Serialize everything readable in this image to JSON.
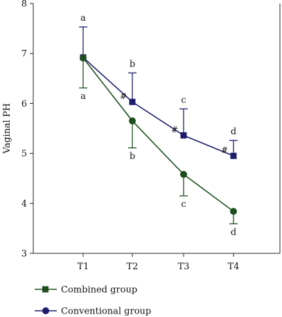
{
  "chart_data": {
    "type": "line",
    "title": "",
    "xlabel": "",
    "ylabel": "Vaginal PH",
    "categories": [
      "T1",
      "T2",
      "T3",
      "T4"
    ],
    "ylim": [
      3,
      8
    ],
    "yticks": [
      "3",
      "4",
      "5",
      "6",
      "7",
      "8"
    ],
    "grid": false,
    "legend_position": "bottom-left",
    "series": [
      {
        "name": "Combined group",
        "marker": "square",
        "color": "#1c1c6b",
        "values": [
          6.92,
          6.03,
          5.36,
          4.95
        ],
        "error_upper": [
          7.53,
          6.61,
          5.89,
          5.26
        ],
        "significance_letters": [
          "a",
          "b",
          "c",
          "d"
        ],
        "hash_marks": [
          "",
          "#",
          "#",
          "#"
        ]
      },
      {
        "name": "Conventional group",
        "marker": "circle",
        "color": "#1e4d1e",
        "values": [
          6.91,
          5.65,
          4.58,
          3.84
        ],
        "error_lower": [
          6.31,
          5.11,
          4.15,
          3.59
        ],
        "significance_letters": [
          "a",
          "b",
          "c",
          "d"
        ],
        "hash_marks": [
          "",
          "",
          "",
          ""
        ]
      }
    ],
    "legend_swatch_colors": {
      "Combined group": "#1e4d1e",
      "Conventional group": "#1c1c6b"
    }
  }
}
